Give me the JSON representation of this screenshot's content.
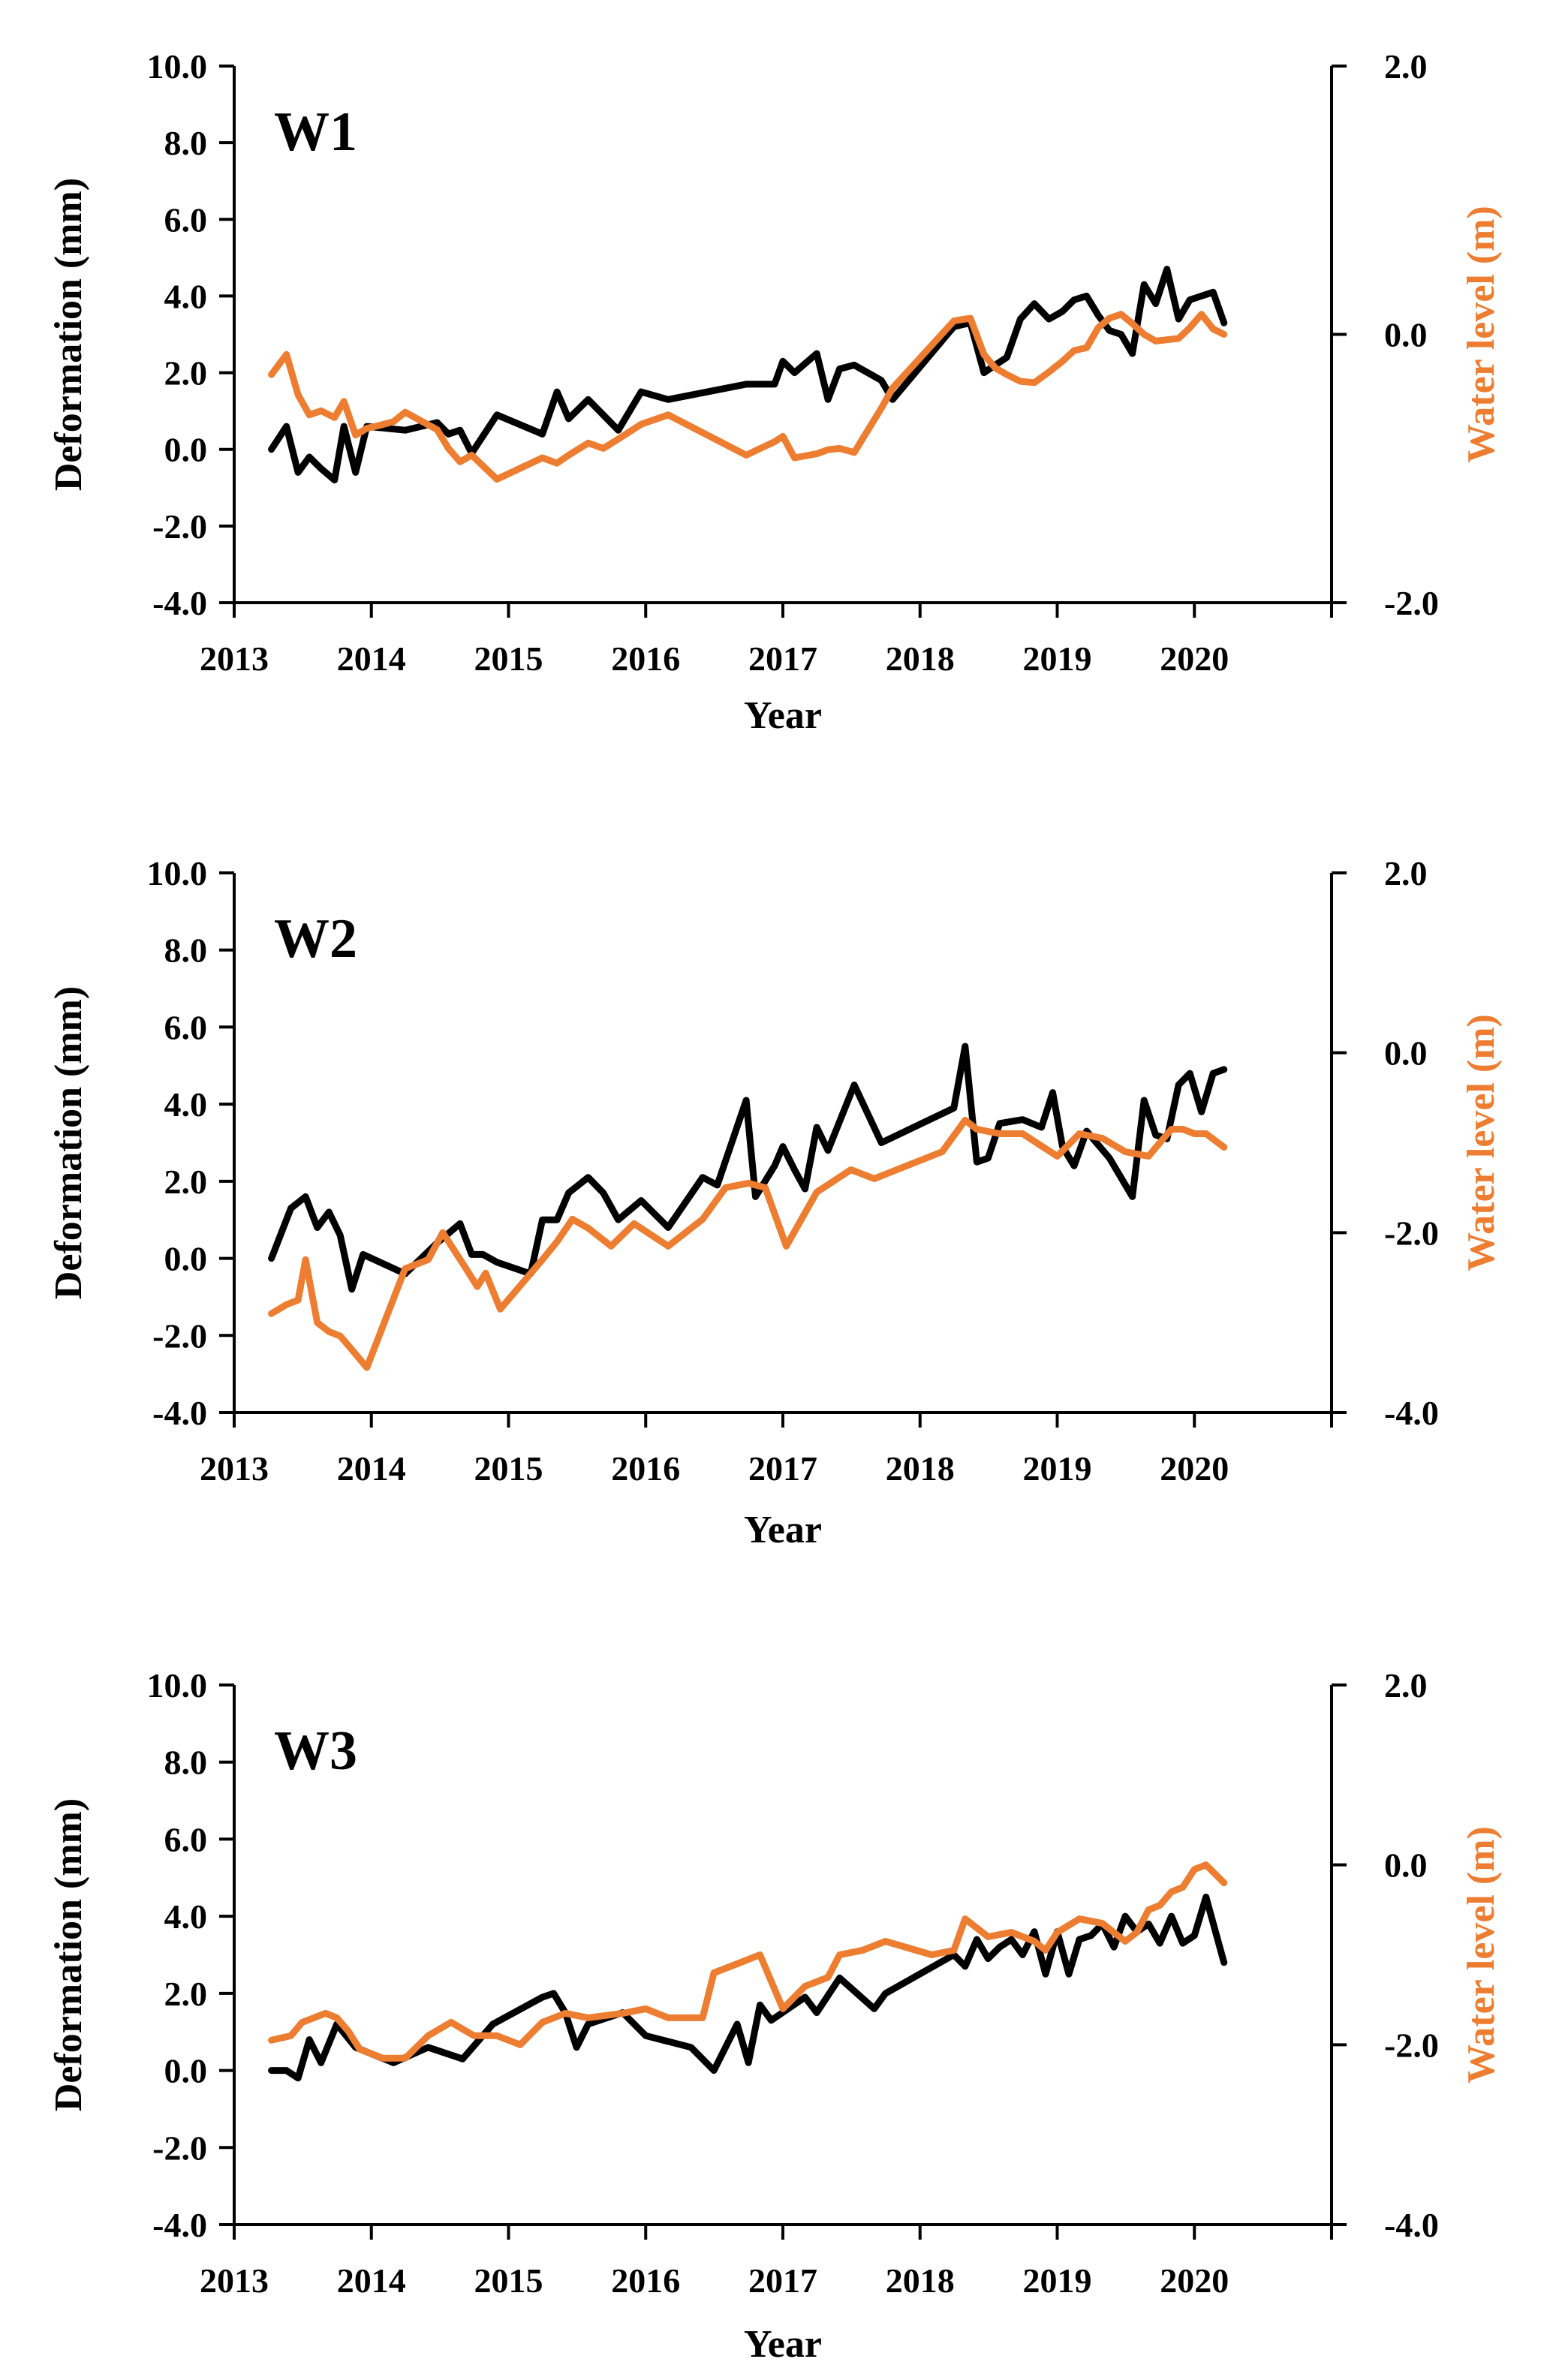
{
  "chart_data": [
    {
      "type": "line",
      "label": "W1",
      "xlabel": "Year",
      "ylabel": "Deformation (mm)",
      "y2label": "Water level (m)",
      "xlim": [
        2013,
        2021
      ],
      "ylim": [
        -4,
        10
      ],
      "y2lim": [
        -2,
        2
      ],
      "xticks": [
        "2013",
        "2014",
        "2015",
        "2016",
        "2017",
        "2018",
        "2019",
        "2020"
      ],
      "yticks": [
        "-4.0",
        "-2.0",
        "0.0",
        "2.0",
        "4.0",
        "6.0",
        "8.0",
        "10.0"
      ],
      "y2ticks": [
        "-2.0",
        "0.0",
        "2.0"
      ],
      "grid": false,
      "colors": {
        "deformation": "#000000",
        "water_level": "#ED7D31"
      },
      "series": [
        {
          "axis": "left",
          "x": [
            "2013-04-10",
            "2013-05-20",
            "2013-06-20",
            "2013-07-20",
            "2013-08-20",
            "2013-09-25",
            "2013-10-20",
            "2013-11-20",
            "2013-12-20",
            "2014-04-01",
            "2014-06-25",
            "2014-07-25",
            "2014-08-25",
            "2014-09-25",
            "2014-12-01",
            "2015-04-01",
            "2015-05-10",
            "2015-06-10",
            "2015-08-01",
            "2015-09-10",
            "2015-10-20",
            "2015-12-20",
            "2016-03-01",
            "2016-09-25",
            "2016-12-10",
            "2017-01-01",
            "2017-02-01",
            "2017-04-01",
            "2017-05-01",
            "2017-06-01",
            "2017-07-10",
            "2017-09-20",
            "2017-10-20",
            "2018-04-01",
            "2018-05-15",
            "2018-06-20",
            "2018-07-20",
            "2018-08-20",
            "2018-09-25",
            "2018-11-01",
            "2018-12-10",
            "2019-01-15",
            "2019-02-15",
            "2019-03-20",
            "2019-04-20",
            "2019-05-20",
            "2019-06-20",
            "2019-07-20",
            "2019-08-20",
            "2019-09-20",
            "2019-10-20",
            "2019-11-20",
            "2019-12-20",
            "2020-01-20",
            "2020-02-20",
            "2020-03-20"
          ],
          "values": [
            0.0,
            0.6,
            -0.6,
            -0.2,
            -0.5,
            -0.8,
            0.6,
            -0.6,
            0.6,
            0.5,
            0.7,
            0.4,
            0.5,
            -0.1,
            0.9,
            0.4,
            1.5,
            0.8,
            1.3,
            0.9,
            0.5,
            1.5,
            1.3,
            1.7,
            1.7,
            2.3,
            2.0,
            2.5,
            1.3,
            2.1,
            2.2,
            1.8,
            1.3,
            3.2,
            3.3,
            2.0,
            2.2,
            2.4,
            3.4,
            3.8,
            3.4,
            3.6,
            3.9,
            4.0,
            3.5,
            3.1,
            3.0,
            2.5,
            4.3,
            3.8,
            4.7,
            3.4,
            3.9,
            4.0,
            4.1,
            3.3
          ]
        },
        {
          "axis": "right",
          "x": [
            "2013-04-10",
            "2013-05-20",
            "2013-06-20",
            "2013-07-20",
            "2013-08-20",
            "2013-09-25",
            "2013-10-20",
            "2013-11-20",
            "2013-12-20",
            "2014-01-20",
            "2014-03-01",
            "2014-04-01",
            "2014-06-25",
            "2014-07-25",
            "2014-08-25",
            "2014-09-25",
            "2014-12-01",
            "2015-04-01",
            "2015-05-10",
            "2015-06-10",
            "2015-08-01",
            "2015-09-10",
            "2015-10-20",
            "2015-12-20",
            "2016-03-01",
            "2016-09-25",
            "2016-12-10",
            "2017-01-01",
            "2017-02-01",
            "2017-04-01",
            "2017-05-01",
            "2017-06-01",
            "2017-07-10",
            "2017-09-20",
            "2017-10-20",
            "2018-04-01",
            "2018-05-15",
            "2018-06-20",
            "2018-07-20",
            "2018-08-20",
            "2018-09-25",
            "2018-11-01",
            "2018-12-10",
            "2019-01-15",
            "2019-02-15",
            "2019-03-20",
            "2019-04-20",
            "2019-05-20",
            "2019-06-20",
            "2019-07-20",
            "2019-08-20",
            "2019-09-20",
            "2019-10-20",
            "2019-11-20",
            "2019-12-20",
            "2020-01-20",
            "2020-02-20",
            "2020-03-20"
          ],
          "values": [
            -0.3,
            -0.15,
            -0.45,
            -0.6,
            -0.57,
            -0.62,
            -0.5,
            -0.75,
            -0.7,
            -0.68,
            -0.65,
            -0.58,
            -0.71,
            -0.85,
            -0.95,
            -0.9,
            -1.08,
            -0.92,
            -0.96,
            -0.9,
            -0.81,
            -0.85,
            -0.78,
            -0.67,
            -0.6,
            -0.9,
            -0.8,
            -0.76,
            -0.92,
            -0.89,
            -0.86,
            -0.85,
            -0.88,
            -0.55,
            -0.4,
            0.1,
            0.12,
            -0.15,
            -0.25,
            -0.3,
            -0.35,
            -0.36,
            -0.28,
            -0.2,
            -0.12,
            -0.1,
            0.05,
            0.12,
            0.15,
            0.08,
            0.0,
            -0.05,
            -0.04,
            -0.03,
            0.05,
            0.15,
            0.04,
            0.0
          ]
        }
      ]
    },
    {
      "type": "line",
      "label": "W2",
      "xlabel": "Year",
      "ylabel": "Deformation (mm)",
      "y2label": "Water level (m)",
      "xlim": [
        2013,
        2021
      ],
      "ylim": [
        -4,
        10
      ],
      "y2lim": [
        -4,
        2
      ],
      "xticks": [
        "2013",
        "2014",
        "2015",
        "2016",
        "2017",
        "2018",
        "2019",
        "2020"
      ],
      "yticks": [
        "-4.0",
        "-2.0",
        "0.0",
        "2.0",
        "4.0",
        "6.0",
        "8.0",
        "10.0"
      ],
      "y2ticks": [
        "-4.0",
        "-2.0",
        "0.0",
        "2.0"
      ],
      "grid": false,
      "colors": {
        "deformation": "#000000",
        "water_level": "#ED7D31"
      },
      "series": [
        {
          "axis": "left",
          "x": [
            "2013-04-10",
            "2013-06-01",
            "2013-07-10",
            "2013-08-10",
            "2013-09-10",
            "2013-10-10",
            "2013-11-10",
            "2013-12-10",
            "2014-04-01",
            "2014-06-25",
            "2014-08-25",
            "2014-09-25",
            "2014-10-25",
            "2014-12-01",
            "2015-03-01",
            "2015-04-01",
            "2015-05-10",
            "2015-06-10",
            "2015-08-01",
            "2015-09-10",
            "2015-10-20",
            "2015-12-20",
            "2016-03-01",
            "2016-06-01",
            "2016-07-10",
            "2016-09-25",
            "2016-10-20",
            "2016-12-10",
            "2017-01-01",
            "2017-02-01",
            "2017-03-01",
            "2017-04-01",
            "2017-05-01",
            "2017-07-10",
            "2017-09-20",
            "2018-04-01",
            "2018-05-01",
            "2018-06-01",
            "2018-07-01",
            "2018-08-01",
            "2018-10-01",
            "2018-11-20",
            "2018-12-20",
            "2019-01-15",
            "2019-02-15",
            "2019-03-20",
            "2019-05-20",
            "2019-07-20",
            "2019-08-20",
            "2019-09-20",
            "2019-10-20",
            "2019-11-20",
            "2019-12-20",
            "2020-01-20",
            "2020-02-20",
            "2020-03-20"
          ],
          "values": [
            0.0,
            1.3,
            1.6,
            0.8,
            1.2,
            0.6,
            -0.8,
            0.1,
            -0.4,
            0.4,
            0.9,
            0.1,
            0.1,
            -0.1,
            -0.4,
            1.0,
            1.0,
            1.7,
            2.1,
            1.7,
            1.0,
            1.5,
            0.8,
            2.1,
            1.9,
            4.1,
            1.6,
            2.4,
            2.9,
            2.3,
            1.8,
            3.4,
            2.8,
            4.5,
            3.0,
            3.9,
            5.5,
            2.5,
            2.6,
            3.5,
            3.6,
            3.4,
            4.3,
            2.9,
            2.4,
            3.3,
            2.6,
            1.6,
            4.1,
            3.2,
            3.1,
            4.5,
            4.8,
            3.8,
            4.8,
            4.9
          ]
        },
        {
          "axis": "right",
          "x": [
            "2013-04-10",
            "2013-05-20",
            "2013-06-20",
            "2013-07-10",
            "2013-08-10",
            "2013-09-10",
            "2013-10-10",
            "2013-11-10",
            "2013-12-20",
            "2014-04-01",
            "2014-06-01",
            "2014-07-10",
            "2014-08-10",
            "2014-09-10",
            "2014-10-10",
            "2014-11-01",
            "2014-12-10",
            "2015-04-01",
            "2015-05-10",
            "2015-06-20",
            "2015-08-01",
            "2015-10-01",
            "2015-12-01",
            "2016-03-01",
            "2016-06-01",
            "2016-08-01",
            "2016-10-01",
            "2016-11-15",
            "2017-01-10",
            "2017-04-01",
            "2017-07-01",
            "2017-09-01",
            "2018-03-01",
            "2018-05-01",
            "2018-06-01",
            "2018-08-01",
            "2018-10-01",
            "2019-01-01",
            "2019-03-01",
            "2019-05-01",
            "2019-07-01",
            "2019-09-01",
            "2019-10-01",
            "2019-11-01",
            "2019-12-01",
            "2020-01-01",
            "2020-02-01",
            "2020-03-20"
          ],
          "values": [
            -2.9,
            -2.8,
            -2.75,
            -2.3,
            -3.0,
            -3.1,
            -3.15,
            -3.3,
            -3.5,
            -2.4,
            -2.3,
            -2.0,
            -2.2,
            -2.4,
            -2.6,
            -2.45,
            -2.85,
            -2.3,
            -2.1,
            -1.85,
            -1.95,
            -2.15,
            -1.9,
            -2.15,
            -1.85,
            -1.5,
            -1.45,
            -1.5,
            -2.15,
            -1.55,
            -1.3,
            -1.4,
            -1.1,
            -0.75,
            -0.85,
            -0.9,
            -0.9,
            -1.15,
            -0.9,
            -0.95,
            -1.1,
            -1.15,
            -1.0,
            -0.85,
            -0.85,
            -0.9,
            -0.9,
            -1.05
          ]
        }
      ]
    },
    {
      "type": "line",
      "label": "W3",
      "xlabel": "Year",
      "ylabel": "Deformation (mm)",
      "y2label": "Water level (m)",
      "xlim": [
        2013,
        2021
      ],
      "ylim": [
        -4,
        10
      ],
      "y2lim": [
        -4,
        2
      ],
      "xticks": [
        "2013",
        "2014",
        "2015",
        "2016",
        "2017",
        "2018",
        "2019",
        "2020"
      ],
      "yticks": [
        "-4.0",
        "-2.0",
        "0.0",
        "2.0",
        "4.0",
        "6.0",
        "8.0",
        "10.0"
      ],
      "y2ticks": [
        "-4.0",
        "-2.0",
        "0.0",
        "2.0"
      ],
      "grid": false,
      "colors": {
        "deformation": "#000000",
        "water_level": "#ED7D31"
      },
      "series": [
        {
          "axis": "left",
          "x": [
            "2013-04-10",
            "2013-05-20",
            "2013-06-20",
            "2013-07-20",
            "2013-08-20",
            "2013-10-01",
            "2013-11-20",
            "2014-03-01",
            "2014-06-01",
            "2014-09-01",
            "2014-11-20",
            "2015-04-01",
            "2015-05-01",
            "2015-06-01",
            "2015-07-01",
            "2015-08-01",
            "2015-11-01",
            "2016-01-01",
            "2016-05-01",
            "2016-07-01",
            "2016-09-01",
            "2016-10-01",
            "2016-11-01",
            "2016-12-01",
            "2017-03-01",
            "2017-04-01",
            "2017-06-01",
            "2017-09-01",
            "2017-10-01",
            "2018-04-01",
            "2018-05-01",
            "2018-06-01",
            "2018-07-01",
            "2018-08-01",
            "2018-09-01",
            "2018-10-01",
            "2018-11-01",
            "2018-12-01",
            "2019-01-01",
            "2019-02-01",
            "2019-03-01",
            "2019-04-01",
            "2019-05-01",
            "2019-06-01",
            "2019-07-01",
            "2019-08-01",
            "2019-09-01",
            "2019-10-01",
            "2019-11-01",
            "2019-12-01",
            "2020-01-01",
            "2020-02-01",
            "2020-03-20"
          ],
          "values": [
            0.0,
            0.0,
            -0.2,
            0.8,
            0.2,
            1.2,
            0.6,
            0.2,
            0.6,
            0.3,
            1.2,
            1.9,
            2.0,
            1.5,
            0.6,
            1.2,
            1.5,
            0.9,
            0.6,
            0.0,
            1.2,
            0.2,
            1.7,
            1.3,
            1.9,
            1.5,
            2.4,
            1.6,
            2.0,
            3.0,
            2.7,
            3.4,
            2.9,
            3.2,
            3.4,
            3.0,
            3.6,
            2.5,
            3.6,
            2.5,
            3.4,
            3.5,
            3.8,
            3.2,
            4.0,
            3.6,
            3.8,
            3.3,
            4.0,
            3.3,
            3.5,
            4.5,
            2.8
          ]
        },
        {
          "axis": "right",
          "x": [
            "2013-04-10",
            "2013-06-01",
            "2013-07-01",
            "2013-08-01",
            "2013-09-01",
            "2013-10-01",
            "2013-11-01",
            "2013-12-01",
            "2014-02-01",
            "2014-04-01",
            "2014-06-01",
            "2014-08-01",
            "2014-10-01",
            "2014-12-01",
            "2015-02-01",
            "2015-04-01",
            "2015-06-01",
            "2015-08-01",
            "2015-11-01",
            "2016-01-01",
            "2016-03-01",
            "2016-06-01",
            "2016-07-01",
            "2016-09-01",
            "2016-11-01",
            "2017-01-01",
            "2017-03-01",
            "2017-05-01",
            "2017-06-01",
            "2017-08-01",
            "2017-10-01",
            "2018-02-01",
            "2018-04-01",
            "2018-05-01",
            "2018-07-01",
            "2018-09-01",
            "2018-11-01",
            "2018-12-01",
            "2019-01-01",
            "2019-03-01",
            "2019-05-01",
            "2019-07-01",
            "2019-08-01",
            "2019-09-01",
            "2019-10-01",
            "2019-11-01",
            "2019-12-01",
            "2020-01-01",
            "2020-02-01",
            "2020-03-20"
          ],
          "values": [
            -1.95,
            -1.9,
            -1.75,
            -1.7,
            -1.65,
            -1.7,
            -1.85,
            -2.05,
            -2.15,
            -2.15,
            -1.9,
            -1.75,
            -1.9,
            -1.9,
            -2.0,
            -1.75,
            -1.65,
            -1.7,
            -1.65,
            -1.6,
            -1.7,
            -1.7,
            -1.2,
            -1.1,
            -1.0,
            -1.6,
            -1.35,
            -1.25,
            -1.0,
            -0.95,
            -0.85,
            -1.0,
            -0.95,
            -0.6,
            -0.8,
            -0.75,
            -0.85,
            -0.95,
            -0.75,
            -0.6,
            -0.65,
            -0.85,
            -0.75,
            -0.5,
            -0.45,
            -0.3,
            -0.25,
            -0.05,
            0.0,
            -0.2
          ]
        }
      ]
    }
  ]
}
